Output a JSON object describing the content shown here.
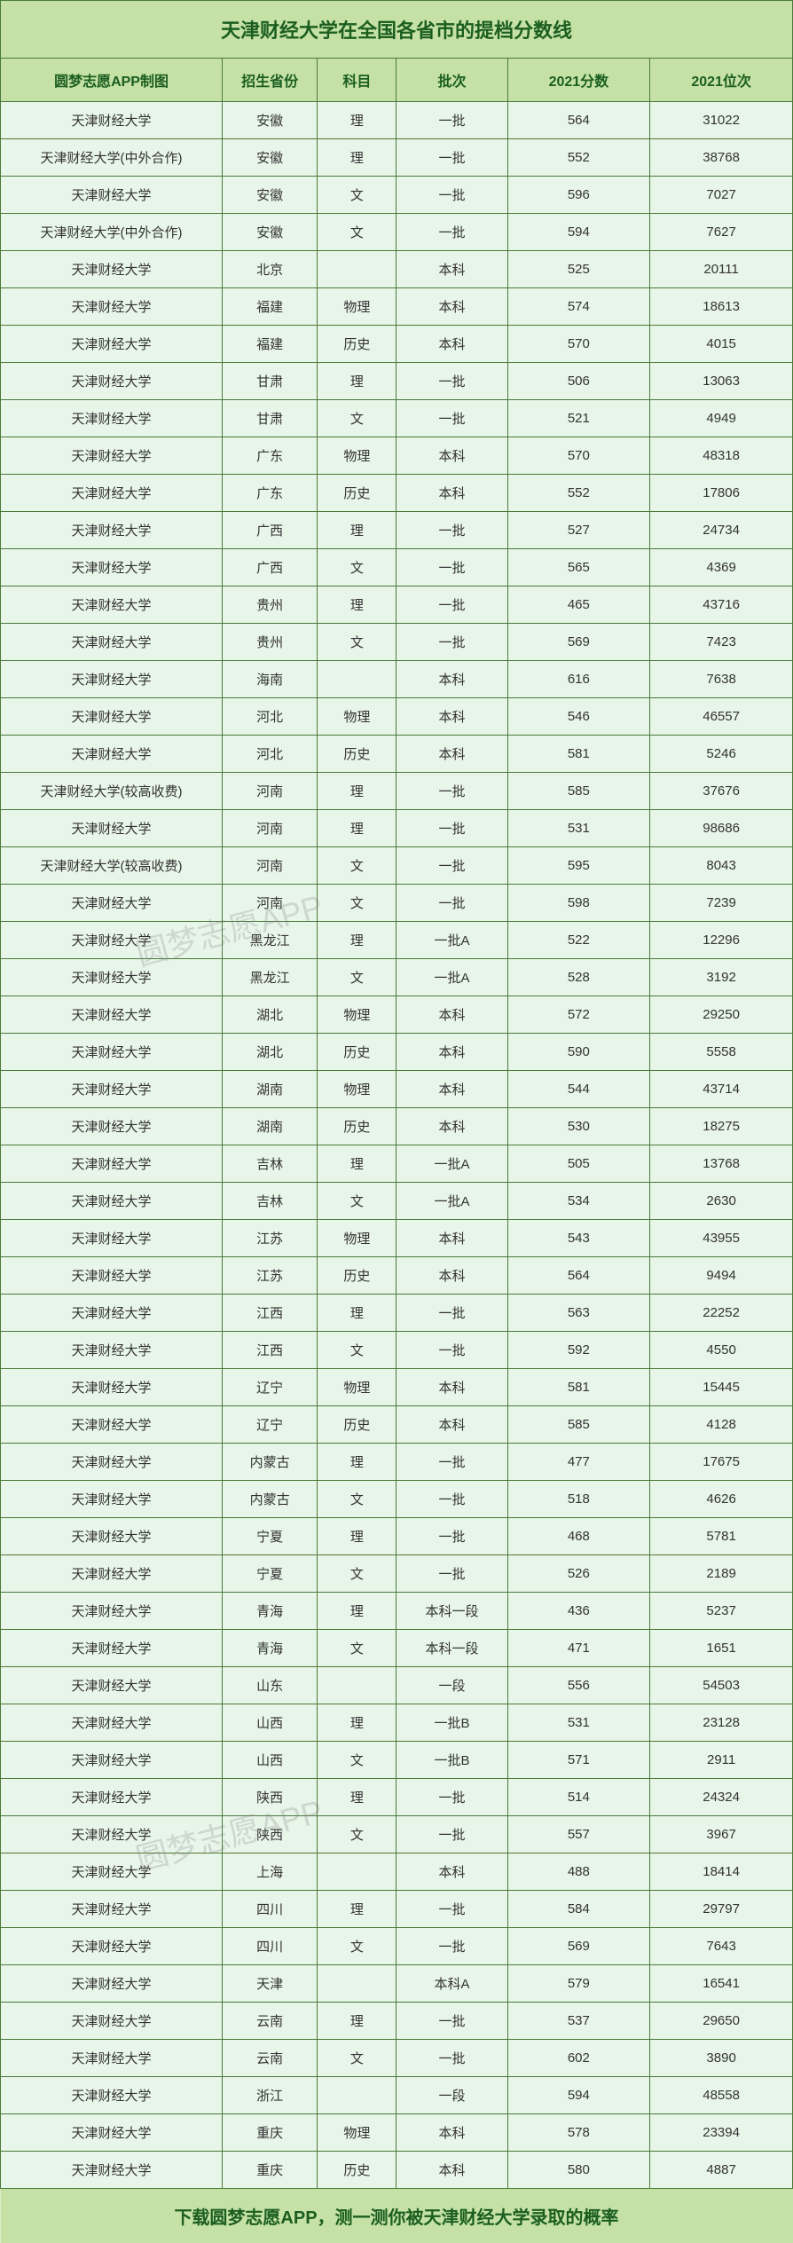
{
  "title": "天津财经大学在全国各省市的提档分数线",
  "footer": "下载圆梦志愿APP，测一测你被天津财经大学录取的概率",
  "watermark": "圆梦志愿APP",
  "headers": {
    "school": "圆梦志愿APP制图",
    "province": "招生省份",
    "subject": "科目",
    "batch": "批次",
    "score": "2021分数",
    "rank": "2021位次"
  },
  "colors": {
    "header_bg": "#c5e1a5",
    "body_bg": "#e8f5e9",
    "border": "#4a7a3a",
    "header_text": "#1b5e20",
    "body_text": "#333333"
  },
  "rows": [
    {
      "school": "天津财经大学",
      "province": "安徽",
      "subject": "理",
      "batch": "一批",
      "score": "564",
      "rank": "31022"
    },
    {
      "school": "天津财经大学(中外合作)",
      "province": "安徽",
      "subject": "理",
      "batch": "一批",
      "score": "552",
      "rank": "38768"
    },
    {
      "school": "天津财经大学",
      "province": "安徽",
      "subject": "文",
      "batch": "一批",
      "score": "596",
      "rank": "7027"
    },
    {
      "school": "天津财经大学(中外合作)",
      "province": "安徽",
      "subject": "文",
      "batch": "一批",
      "score": "594",
      "rank": "7627"
    },
    {
      "school": "天津财经大学",
      "province": "北京",
      "subject": "",
      "batch": "本科",
      "score": "525",
      "rank": "20111"
    },
    {
      "school": "天津财经大学",
      "province": "福建",
      "subject": "物理",
      "batch": "本科",
      "score": "574",
      "rank": "18613"
    },
    {
      "school": "天津财经大学",
      "province": "福建",
      "subject": "历史",
      "batch": "本科",
      "score": "570",
      "rank": "4015"
    },
    {
      "school": "天津财经大学",
      "province": "甘肃",
      "subject": "理",
      "batch": "一批",
      "score": "506",
      "rank": "13063"
    },
    {
      "school": "天津财经大学",
      "province": "甘肃",
      "subject": "文",
      "batch": "一批",
      "score": "521",
      "rank": "4949"
    },
    {
      "school": "天津财经大学",
      "province": "广东",
      "subject": "物理",
      "batch": "本科",
      "score": "570",
      "rank": "48318"
    },
    {
      "school": "天津财经大学",
      "province": "广东",
      "subject": "历史",
      "batch": "本科",
      "score": "552",
      "rank": "17806"
    },
    {
      "school": "天津财经大学",
      "province": "广西",
      "subject": "理",
      "batch": "一批",
      "score": "527",
      "rank": "24734"
    },
    {
      "school": "天津财经大学",
      "province": "广西",
      "subject": "文",
      "batch": "一批",
      "score": "565",
      "rank": "4369"
    },
    {
      "school": "天津财经大学",
      "province": "贵州",
      "subject": "理",
      "batch": "一批",
      "score": "465",
      "rank": "43716"
    },
    {
      "school": "天津财经大学",
      "province": "贵州",
      "subject": "文",
      "batch": "一批",
      "score": "569",
      "rank": "7423"
    },
    {
      "school": "天津财经大学",
      "province": "海南",
      "subject": "",
      "batch": "本科",
      "score": "616",
      "rank": "7638"
    },
    {
      "school": "天津财经大学",
      "province": "河北",
      "subject": "物理",
      "batch": "本科",
      "score": "546",
      "rank": "46557"
    },
    {
      "school": "天津财经大学",
      "province": "河北",
      "subject": "历史",
      "batch": "本科",
      "score": "581",
      "rank": "5246"
    },
    {
      "school": "天津财经大学(较高收费)",
      "province": "河南",
      "subject": "理",
      "batch": "一批",
      "score": "585",
      "rank": "37676"
    },
    {
      "school": "天津财经大学",
      "province": "河南",
      "subject": "理",
      "batch": "一批",
      "score": "531",
      "rank": "98686"
    },
    {
      "school": "天津财经大学(较高收费)",
      "province": "河南",
      "subject": "文",
      "batch": "一批",
      "score": "595",
      "rank": "8043"
    },
    {
      "school": "天津财经大学",
      "province": "河南",
      "subject": "文",
      "batch": "一批",
      "score": "598",
      "rank": "7239"
    },
    {
      "school": "天津财经大学",
      "province": "黑龙江",
      "subject": "理",
      "batch": "一批A",
      "score": "522",
      "rank": "12296"
    },
    {
      "school": "天津财经大学",
      "province": "黑龙江",
      "subject": "文",
      "batch": "一批A",
      "score": "528",
      "rank": "3192"
    },
    {
      "school": "天津财经大学",
      "province": "湖北",
      "subject": "物理",
      "batch": "本科",
      "score": "572",
      "rank": "29250"
    },
    {
      "school": "天津财经大学",
      "province": "湖北",
      "subject": "历史",
      "batch": "本科",
      "score": "590",
      "rank": "5558"
    },
    {
      "school": "天津财经大学",
      "province": "湖南",
      "subject": "物理",
      "batch": "本科",
      "score": "544",
      "rank": "43714"
    },
    {
      "school": "天津财经大学",
      "province": "湖南",
      "subject": "历史",
      "batch": "本科",
      "score": "530",
      "rank": "18275"
    },
    {
      "school": "天津财经大学",
      "province": "吉林",
      "subject": "理",
      "batch": "一批A",
      "score": "505",
      "rank": "13768"
    },
    {
      "school": "天津财经大学",
      "province": "吉林",
      "subject": "文",
      "batch": "一批A",
      "score": "534",
      "rank": "2630"
    },
    {
      "school": "天津财经大学",
      "province": "江苏",
      "subject": "物理",
      "batch": "本科",
      "score": "543",
      "rank": "43955"
    },
    {
      "school": "天津财经大学",
      "province": "江苏",
      "subject": "历史",
      "batch": "本科",
      "score": "564",
      "rank": "9494"
    },
    {
      "school": "天津财经大学",
      "province": "江西",
      "subject": "理",
      "batch": "一批",
      "score": "563",
      "rank": "22252"
    },
    {
      "school": "天津财经大学",
      "province": "江西",
      "subject": "文",
      "batch": "一批",
      "score": "592",
      "rank": "4550"
    },
    {
      "school": "天津财经大学",
      "province": "辽宁",
      "subject": "物理",
      "batch": "本科",
      "score": "581",
      "rank": "15445"
    },
    {
      "school": "天津财经大学",
      "province": "辽宁",
      "subject": "历史",
      "batch": "本科",
      "score": "585",
      "rank": "4128"
    },
    {
      "school": "天津财经大学",
      "province": "内蒙古",
      "subject": "理",
      "batch": "一批",
      "score": "477",
      "rank": "17675"
    },
    {
      "school": "天津财经大学",
      "province": "内蒙古",
      "subject": "文",
      "batch": "一批",
      "score": "518",
      "rank": "4626"
    },
    {
      "school": "天津财经大学",
      "province": "宁夏",
      "subject": "理",
      "batch": "一批",
      "score": "468",
      "rank": "5781"
    },
    {
      "school": "天津财经大学",
      "province": "宁夏",
      "subject": "文",
      "batch": "一批",
      "score": "526",
      "rank": "2189"
    },
    {
      "school": "天津财经大学",
      "province": "青海",
      "subject": "理",
      "batch": "本科一段",
      "score": "436",
      "rank": "5237"
    },
    {
      "school": "天津财经大学",
      "province": "青海",
      "subject": "文",
      "batch": "本科一段",
      "score": "471",
      "rank": "1651"
    },
    {
      "school": "天津财经大学",
      "province": "山东",
      "subject": "",
      "batch": "一段",
      "score": "556",
      "rank": "54503"
    },
    {
      "school": "天津财经大学",
      "province": "山西",
      "subject": "理",
      "batch": "一批B",
      "score": "531",
      "rank": "23128"
    },
    {
      "school": "天津财经大学",
      "province": "山西",
      "subject": "文",
      "batch": "一批B",
      "score": "571",
      "rank": "2911"
    },
    {
      "school": "天津财经大学",
      "province": "陕西",
      "subject": "理",
      "batch": "一批",
      "score": "514",
      "rank": "24324"
    },
    {
      "school": "天津财经大学",
      "province": "陕西",
      "subject": "文",
      "batch": "一批",
      "score": "557",
      "rank": "3967"
    },
    {
      "school": "天津财经大学",
      "province": "上海",
      "subject": "",
      "batch": "本科",
      "score": "488",
      "rank": "18414"
    },
    {
      "school": "天津财经大学",
      "province": "四川",
      "subject": "理",
      "batch": "一批",
      "score": "584",
      "rank": "29797"
    },
    {
      "school": "天津财经大学",
      "province": "四川",
      "subject": "文",
      "batch": "一批",
      "score": "569",
      "rank": "7643"
    },
    {
      "school": "天津财经大学",
      "province": "天津",
      "subject": "",
      "batch": "本科A",
      "score": "579",
      "rank": "16541"
    },
    {
      "school": "天津财经大学",
      "province": "云南",
      "subject": "理",
      "batch": "一批",
      "score": "537",
      "rank": "29650"
    },
    {
      "school": "天津财经大学",
      "province": "云南",
      "subject": "文",
      "batch": "一批",
      "score": "602",
      "rank": "3890"
    },
    {
      "school": "天津财经大学",
      "province": "浙江",
      "subject": "",
      "batch": "一段",
      "score": "594",
      "rank": "48558"
    },
    {
      "school": "天津财经大学",
      "province": "重庆",
      "subject": "物理",
      "batch": "本科",
      "score": "578",
      "rank": "23394"
    },
    {
      "school": "天津财经大学",
      "province": "重庆",
      "subject": "历史",
      "batch": "本科",
      "score": "580",
      "rank": "4887"
    }
  ]
}
